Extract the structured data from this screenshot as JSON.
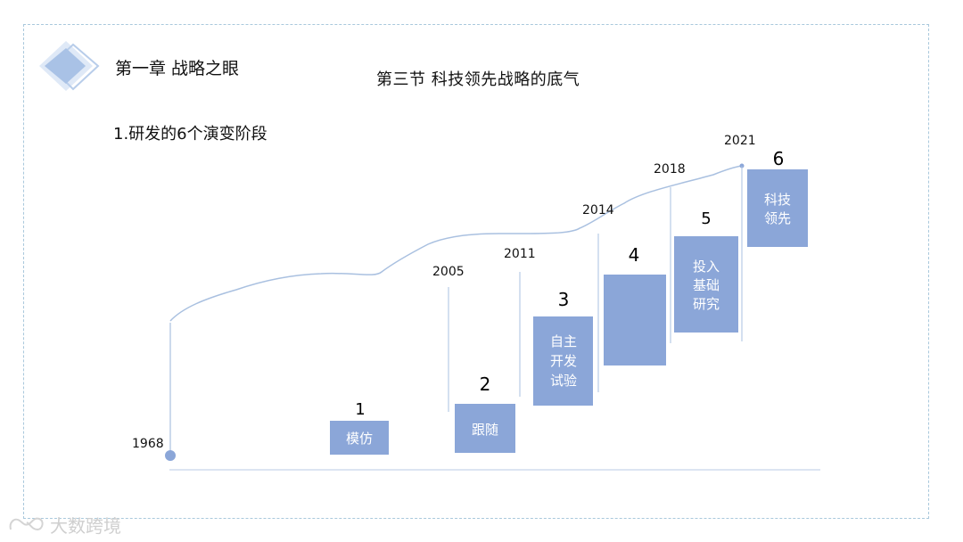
{
  "header": {
    "chapter": "第一章 战略之眼",
    "section": "第三节    科技领先战略的底气",
    "subtitle": "1.研发的6个演变阶段"
  },
  "diagram": {
    "start_year": "1968",
    "years": [
      "2005",
      "2011",
      "2014",
      "2018",
      "2021"
    ],
    "stages": [
      {
        "number": "1",
        "lines": [
          "模仿"
        ]
      },
      {
        "number": "2",
        "lines": [
          "跟随"
        ]
      },
      {
        "number": "3",
        "lines": [
          "自主",
          "开发",
          "试验"
        ]
      },
      {
        "number": "4",
        "lines": []
      },
      {
        "number": "5",
        "lines": [
          "投入",
          "基础",
          "研究"
        ]
      },
      {
        "number": "6",
        "lines": [
          "科技",
          "领先"
        ]
      }
    ],
    "colors": {
      "box": "#8ba6d8",
      "line": "#a9c0e0",
      "dot": "#8ba6d8"
    }
  },
  "watermark": {
    "text": "大数跨境",
    "icon": "infinity-speech-icon"
  }
}
